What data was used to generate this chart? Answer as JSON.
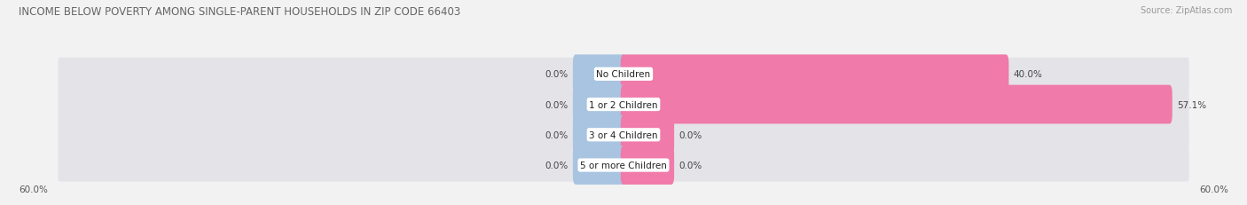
{
  "title": "INCOME BELOW POVERTY AMONG SINGLE-PARENT HOUSEHOLDS IN ZIP CODE 66403",
  "source": "Source: ZipAtlas.com",
  "categories": [
    "No Children",
    "1 or 2 Children",
    "3 or 4 Children",
    "5 or more Children"
  ],
  "single_father": [
    0.0,
    0.0,
    0.0,
    0.0
  ],
  "single_mother": [
    40.0,
    57.1,
    0.0,
    0.0
  ],
  "father_color": "#a8c4e0",
  "mother_color": "#f07aaa",
  "bg_color": "#f2f2f2",
  "row_bg_color": "#e4e4e8",
  "xlim_left": -60.0,
  "xlim_right": 60.0,
  "x_left_label": "60.0%",
  "x_right_label": "60.0%",
  "title_fontsize": 8.5,
  "source_fontsize": 7,
  "value_fontsize": 7.5,
  "cat_fontsize": 7.5,
  "legend_fontsize": 8,
  "father_stub": 5.0,
  "mother_stub": 5.0
}
